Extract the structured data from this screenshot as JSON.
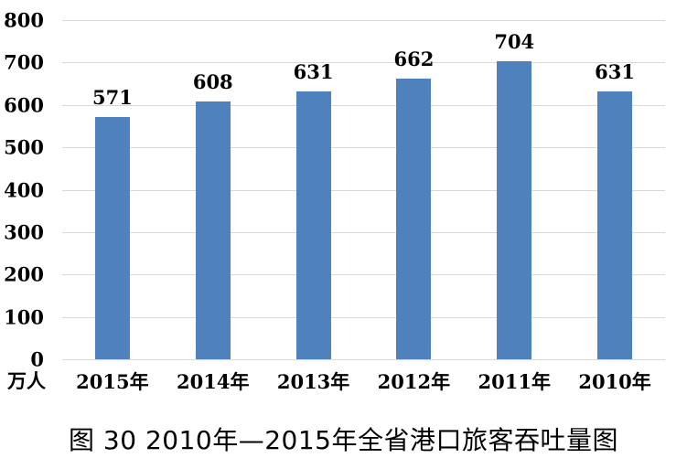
{
  "chart_data": {
    "type": "bar",
    "categories": [
      "2015年",
      "2014年",
      "2013年",
      "2012年",
      "2011年",
      "2010年"
    ],
    "values": [
      571,
      608,
      631,
      662,
      704,
      631
    ],
    "title": "图 30  2010年—2015年全省港口旅客吞吐量图",
    "xlabel": "",
    "ylabel": "万人",
    "ylim": [
      0,
      800
    ],
    "yticks": [
      0,
      100,
      200,
      300,
      400,
      500,
      600,
      700,
      800
    ],
    "grid": true,
    "legend_position": "none",
    "value_labels_shown": true,
    "bar_color": "#4F81BD",
    "gridline_color": "#D9D9D9",
    "text_color": "#000000",
    "background_color": "#FFFFFF"
  }
}
